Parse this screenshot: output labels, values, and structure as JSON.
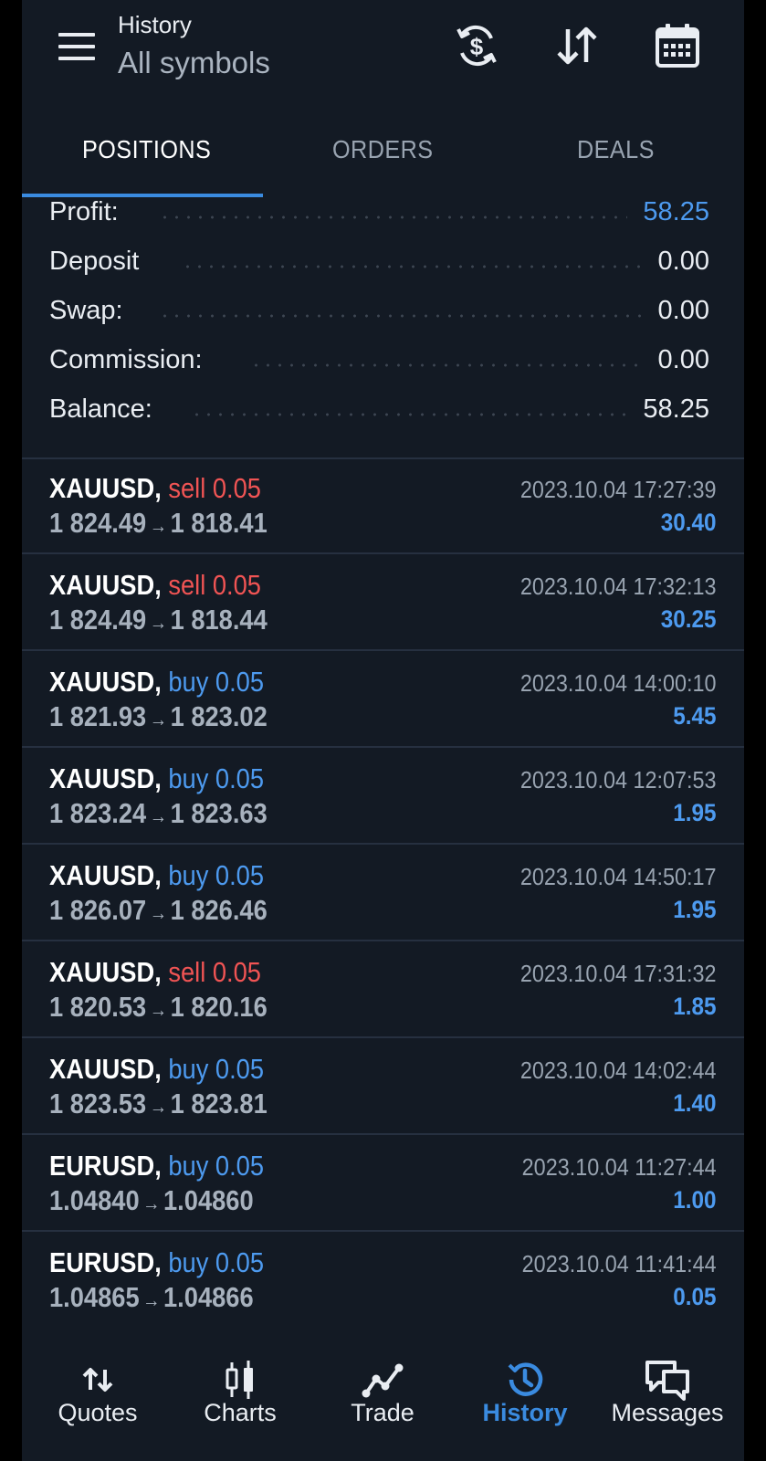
{
  "header": {
    "title": "History",
    "subtitle": "All symbols",
    "icons": [
      "menu-icon",
      "currency-exchange-icon",
      "sort-icon",
      "calendar-icon"
    ]
  },
  "tabs": [
    {
      "label": "POSITIONS",
      "active": true
    },
    {
      "label": "ORDERS",
      "active": false
    },
    {
      "label": "DEALS",
      "active": false
    }
  ],
  "summary": {
    "profit": {
      "label": "Profit:",
      "value": "58.25"
    },
    "deposit": {
      "label": "Deposit",
      "value": "0.00"
    },
    "swap": {
      "label": "Swap:",
      "value": "0.00"
    },
    "commission": {
      "label": "Commission:",
      "value": "0.00"
    },
    "balance": {
      "label": "Balance:",
      "value": "58.25"
    }
  },
  "deals": [
    {
      "symbol": "XAUUSD,",
      "side": "sell 0.05",
      "open": "1 824.49",
      "close": "1 818.41",
      "time": "2023.10.04 17:27:39",
      "profit": "30.40"
    },
    {
      "symbol": "XAUUSD,",
      "side": "sell 0.05",
      "open": "1 824.49",
      "close": "1 818.44",
      "time": "2023.10.04 17:32:13",
      "profit": "30.25"
    },
    {
      "symbol": "XAUUSD,",
      "side": "buy 0.05",
      "open": "1 821.93",
      "close": "1 823.02",
      "time": "2023.10.04 14:00:10",
      "profit": "5.45"
    },
    {
      "symbol": "XAUUSD,",
      "side": "buy 0.05",
      "open": "1 823.24",
      "close": "1 823.63",
      "time": "2023.10.04 12:07:53",
      "profit": "1.95"
    },
    {
      "symbol": "XAUUSD,",
      "side": "buy 0.05",
      "open": "1 826.07",
      "close": "1 826.46",
      "time": "2023.10.04 14:50:17",
      "profit": "1.95"
    },
    {
      "symbol": "XAUUSD,",
      "side": "sell 0.05",
      "open": "1 820.53",
      "close": "1 820.16",
      "time": "2023.10.04 17:31:32",
      "profit": "1.85"
    },
    {
      "symbol": "XAUUSD,",
      "side": "buy 0.05",
      "open": "1 823.53",
      "close": "1 823.81",
      "time": "2023.10.04 14:02:44",
      "profit": "1.40"
    },
    {
      "symbol": "EURUSD,",
      "side": "buy 0.05",
      "open": "1.04840",
      "close": "1.04860",
      "time": "2023.10.04 11:27:44",
      "profit": "1.00"
    },
    {
      "symbol": "EURUSD,",
      "side": "buy 0.05",
      "open": "1.04865",
      "close": "1.04866",
      "time": "2023.10.04 11:41:44",
      "profit": "0.05"
    }
  ],
  "arrow": "→",
  "nav": [
    {
      "label": "Quotes",
      "icon": "quotes-icon",
      "active": false
    },
    {
      "label": "Charts",
      "icon": "charts-icon",
      "active": false
    },
    {
      "label": "Trade",
      "icon": "trade-icon",
      "active": false
    },
    {
      "label": "History",
      "icon": "history-icon",
      "active": true
    },
    {
      "label": "Messages",
      "icon": "messages-icon",
      "active": false
    }
  ],
  "colors": {
    "background": "#131a24",
    "accent": "#3a8be0",
    "buy": "#4d9aef",
    "sell": "#f05454",
    "text": "#e9edf2",
    "muted": "#98a3b0"
  }
}
